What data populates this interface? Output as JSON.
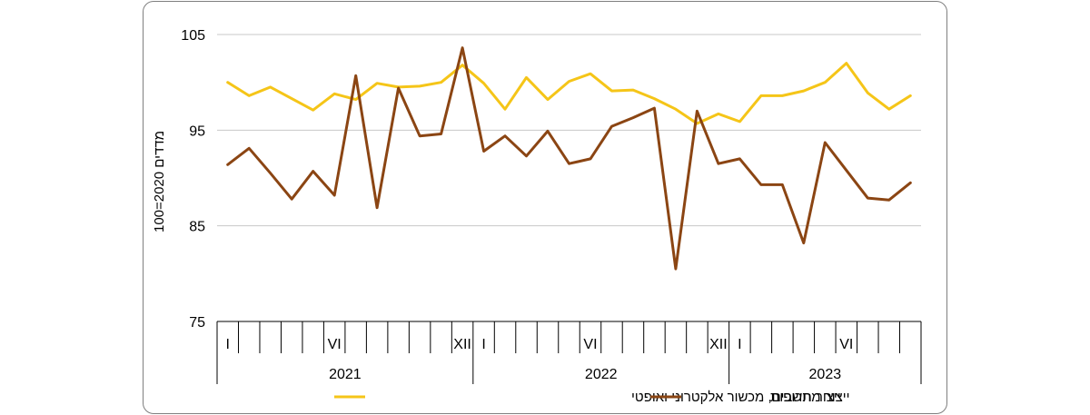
{
  "chart_data": {
    "type": "line",
    "ylabel": "מדדים 2020=100",
    "ylim": [
      75,
      105
    ],
    "yticks": [
      75,
      85,
      95,
      105
    ],
    "grid": true,
    "legend_position": "bottom",
    "month_labels": {
      "0": "I",
      "5": "VI",
      "11": "XII"
    },
    "years": [
      "2021",
      "2022",
      "2023"
    ],
    "months_per_year": [
      12,
      12,
      9
    ],
    "series": [
      {
        "name": "ייצור מחשבים, מכשור אלקטרוני ואופטי",
        "color": "#F5C518",
        "values": [
          100.0,
          98.6,
          99.5,
          98.3,
          97.1,
          98.8,
          98.2,
          99.9,
          99.5,
          99.6,
          100.0,
          101.8,
          99.9,
          97.2,
          100.5,
          98.2,
          100.1,
          100.9,
          99.1,
          99.2,
          98.3,
          97.2,
          95.7,
          96.7,
          95.9,
          98.6,
          98.6,
          99.1,
          100.0,
          102.0,
          98.9,
          97.2,
          98.6
        ]
      },
      {
        "name": "ייצור תרופות",
        "color": "#8B4513",
        "values": [
          91.4,
          93.1,
          90.5,
          87.8,
          90.7,
          88.2,
          100.7,
          86.9,
          99.4,
          94.4,
          94.6,
          103.6,
          92.8,
          94.4,
          92.3,
          94.9,
          91.5,
          92.0,
          95.4,
          96.3,
          97.3,
          80.5,
          97.0,
          91.5,
          92.0,
          89.3,
          89.3,
          83.2,
          93.7,
          90.8,
          87.9,
          87.7,
          89.5
        ]
      }
    ]
  }
}
